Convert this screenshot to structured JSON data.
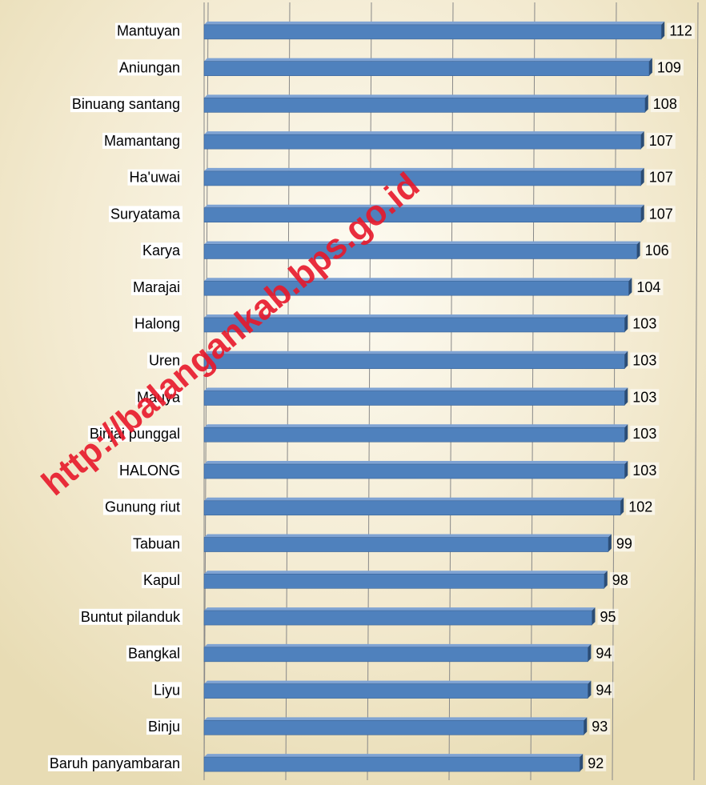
{
  "chart_data": {
    "type": "bar",
    "orientation": "horizontal",
    "categories": [
      "Mantuyan",
      "Aniungan",
      "Binuang santang",
      "Mamantang",
      "Ha'uwai",
      "Suryatama",
      "Karya",
      "Marajai",
      "Halong",
      "Uren",
      "Mauya",
      "Binjai punggal",
      "HALONG",
      "Gunung riut",
      "Tabuan",
      "Kapul",
      "Buntut pilanduk",
      "Bangkal",
      "Liyu",
      "Binju",
      "Baruh panyambaran"
    ],
    "values": [
      112,
      109,
      108,
      107,
      107,
      107,
      106,
      104,
      103,
      103,
      103,
      103,
      103,
      102,
      99,
      98,
      95,
      94,
      94,
      93,
      92
    ],
    "color": "#4f81bd",
    "xlim": [
      0,
      120
    ],
    "xticks": [
      0,
      20,
      40,
      60,
      80,
      100,
      120
    ],
    "grid": true,
    "watermark": "http://balangankab.bps.go.id"
  }
}
